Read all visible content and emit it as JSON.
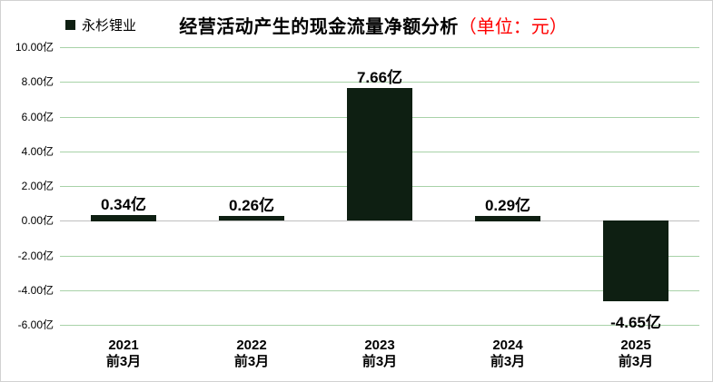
{
  "chart_data": {
    "type": "bar",
    "title": "经营活动产生的现金流量净额分析",
    "title_unit": "（单位：元）",
    "legend": "永杉锂业",
    "categories": [
      {
        "line1": "2021",
        "line2": "前3月"
      },
      {
        "line1": "2022",
        "line2": "前3月"
      },
      {
        "line1": "2023",
        "line2": "前3月"
      },
      {
        "line1": "2024",
        "line2": "前3月"
      },
      {
        "line1": "2025",
        "line2": "前3月"
      }
    ],
    "values": [
      0.34,
      0.26,
      7.66,
      0.29,
      -4.65
    ],
    "value_labels": [
      "0.34亿",
      "0.26亿",
      "7.66亿",
      "0.29亿",
      "-4.65亿"
    ],
    "y_axis": {
      "range": [
        -6,
        10
      ],
      "ticks": [
        {
          "label": "10.00亿",
          "value": 10
        },
        {
          "label": "8.00亿",
          "value": 8
        },
        {
          "label": "6.00亿",
          "value": 6
        },
        {
          "label": "4.00亿",
          "value": 4
        },
        {
          "label": "2.00亿",
          "value": 2
        },
        {
          "label": "0.00亿",
          "value": 0
        },
        {
          "label": "-2.00亿",
          "value": -2
        },
        {
          "label": "-4.00亿",
          "value": -4
        },
        {
          "label": "-6.00亿",
          "value": -6
        }
      ]
    },
    "grid": true,
    "legend_position": "top-left",
    "colors": {
      "bar": "#0e1f12",
      "gridline": "#a8d2a8",
      "zero_line": "#bfbfbf",
      "unit_text": "#ff0000",
      "text": "#000000",
      "border": "#d2d2d2"
    }
  }
}
